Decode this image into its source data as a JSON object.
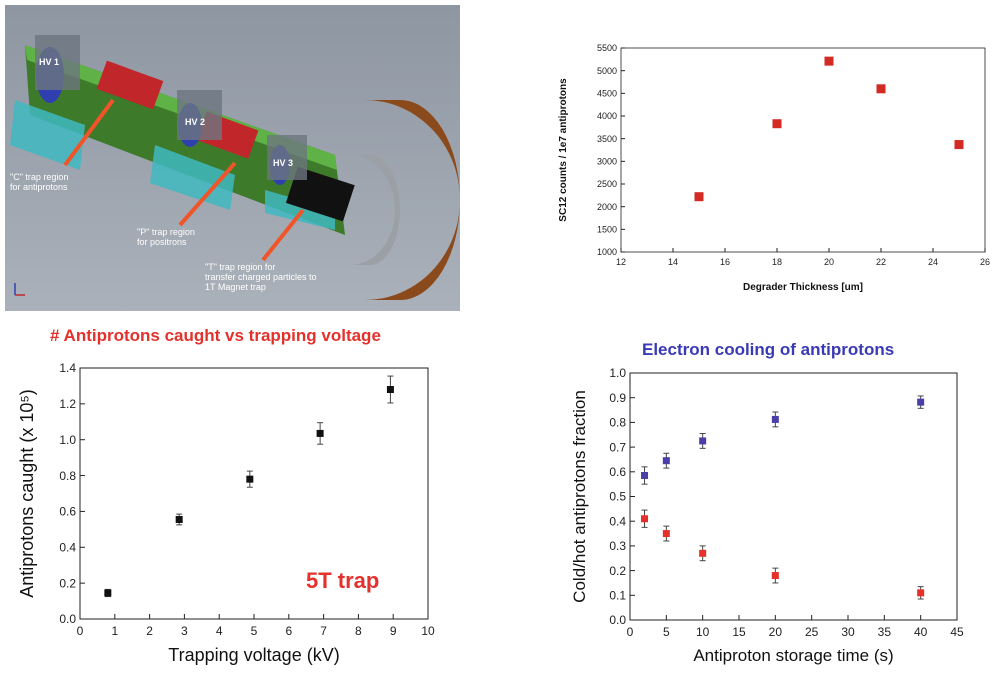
{
  "cad": {
    "hv_labels": [
      "HV 1",
      "HV 2",
      "HV 3"
    ],
    "region_labels": [
      "\"C\" trap region\nfor antiprotons",
      "\"P\" trap region\nfor positrons",
      "\"T\" trap region for\ntransfer charged particles to\n1T Magnet trap"
    ],
    "colors": {
      "tube": "#2e8b2e",
      "magnet": "#2f3fb0",
      "electrode": "#c0262a",
      "flange": "#8a4a1c",
      "arrow": "#f0552a"
    }
  },
  "charts": {
    "degrader": {
      "ylabel_display": "SC12 counts / 1e7 antiprotons"
    },
    "voltage": {
      "inset_label": "5T trap"
    }
  },
  "chart_data": [
    {
      "type": "scatter",
      "title": "",
      "xlabel": "Degrader Thickness [um]",
      "ylabel": "SC12 counts / 1e7 antiprotons",
      "xlim": [
        12,
        26
      ],
      "ylim": [
        1000,
        5500
      ],
      "xticks": [
        12,
        14,
        16,
        18,
        20,
        22,
        24,
        26
      ],
      "yticks": [
        1000,
        1500,
        2000,
        2500,
        3000,
        3500,
        4000,
        4500,
        5000,
        5500
      ],
      "series": [
        {
          "color": "#d42a24",
          "x": [
            15,
            18,
            20,
            22,
            25
          ],
          "y": [
            2220,
            3830,
            5210,
            4600,
            3370
          ]
        }
      ],
      "grid": false
    },
    {
      "type": "scatter",
      "title": "# Antiprotons caught vs trapping voltage",
      "xlabel": "Trapping voltage (kV)",
      "ylabel": "Antiprotons caught (x 10⁵)",
      "xlim": [
        0,
        10
      ],
      "ylim": [
        0,
        1.4
      ],
      "xticks": [
        0,
        1,
        2,
        3,
        4,
        5,
        6,
        7,
        8,
        9,
        10
      ],
      "yticks": [
        0.0,
        0.2,
        0.4,
        0.6,
        0.8,
        1.0,
        1.2,
        1.4
      ],
      "series": [
        {
          "color": "#111111",
          "x": [
            0.8,
            2.85,
            4.88,
            6.9,
            8.92
          ],
          "y": [
            0.145,
            0.555,
            0.78,
            1.035,
            1.28
          ],
          "err": [
            0.02,
            0.03,
            0.045,
            0.06,
            0.075
          ]
        }
      ],
      "grid": false
    },
    {
      "type": "scatter",
      "title": "Electron cooling of antiprotons",
      "xlabel": "Antiproton storage time (s)",
      "ylabel": "Cold/hot antiprotons fraction",
      "xlim": [
        0,
        45
      ],
      "ylim": [
        0,
        1.0
      ],
      "xticks": [
        0,
        5,
        10,
        15,
        20,
        25,
        30,
        35,
        40,
        45
      ],
      "yticks": [
        0,
        0.1,
        0.2,
        0.3,
        0.4,
        0.5,
        0.6,
        0.7,
        0.8,
        0.9,
        1.0
      ],
      "series": [
        {
          "color": "#4a3fa8",
          "x": [
            2,
            5,
            10,
            20,
            40
          ],
          "y": [
            0.585,
            0.645,
            0.725,
            0.812,
            0.882
          ],
          "err": [
            0.035,
            0.03,
            0.03,
            0.03,
            0.025
          ]
        },
        {
          "color": "#e8302a",
          "x": [
            2,
            5,
            10,
            20,
            40
          ],
          "y": [
            0.41,
            0.35,
            0.27,
            0.18,
            0.11
          ],
          "err": [
            0.035,
            0.03,
            0.03,
            0.03,
            0.025
          ]
        }
      ],
      "grid": false
    }
  ]
}
